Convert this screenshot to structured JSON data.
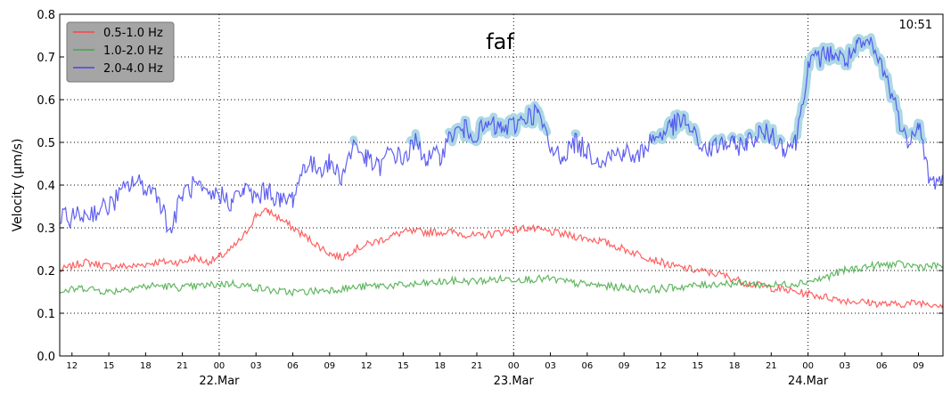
{
  "chart_data": {
    "type": "line",
    "title": "faf",
    "time_stamp": "10:51",
    "ylabel": "Velocity (μm/s)",
    "ylim": [
      0.0,
      0.8
    ],
    "yticks": [
      0.0,
      0.1,
      0.2,
      0.3,
      0.4,
      0.5,
      0.6,
      0.7,
      0.8
    ],
    "ytick_labels": [
      "0.0",
      "0.1",
      "0.2",
      "0.3",
      "0.4",
      "0.5",
      "0.6",
      "0.7",
      "0.8"
    ],
    "x_unit": "hours since 21 Mar 11:00",
    "xlim": [
      0,
      72
    ],
    "hour_ticks": [
      1,
      4,
      7,
      10,
      13,
      16,
      19,
      22,
      25,
      28,
      31,
      34,
      37,
      40,
      43,
      46,
      49,
      52,
      55,
      58,
      61,
      64,
      67,
      70
    ],
    "hour_tick_labels": [
      "12",
      "15",
      "18",
      "21",
      "00",
      "03",
      "06",
      "09",
      "12",
      "15",
      "18",
      "21",
      "00",
      "03",
      "06",
      "09",
      "12",
      "15",
      "18",
      "21",
      "00",
      "03",
      "06",
      "09"
    ],
    "day_ticks": [
      13,
      37,
      61
    ],
    "day_labels": [
      "22.Mar",
      "23.Mar",
      "24.Mar"
    ],
    "grid": true,
    "legend_position": "top-left",
    "threshold": 0.5,
    "threshold_color": "#add8e6",
    "series": [
      {
        "name": "0.5-1.0 Hz",
        "color": "#ff4444",
        "x": [
          0,
          2,
          4,
          6,
          8,
          10,
          11,
          12,
          13,
          14,
          15,
          16,
          17,
          18,
          19,
          20,
          21,
          22,
          23,
          24,
          26,
          28,
          30,
          32,
          34,
          36,
          38,
          40,
          42,
          44,
          46,
          48,
          50,
          52,
          54,
          56,
          58,
          60,
          62,
          64,
          66,
          68,
          70,
          72
        ],
        "y": [
          0.2,
          0.22,
          0.21,
          0.21,
          0.22,
          0.22,
          0.23,
          0.22,
          0.23,
          0.25,
          0.28,
          0.33,
          0.34,
          0.32,
          0.3,
          0.28,
          0.26,
          0.24,
          0.23,
          0.25,
          0.27,
          0.29,
          0.29,
          0.29,
          0.28,
          0.29,
          0.3,
          0.29,
          0.28,
          0.27,
          0.25,
          0.23,
          0.21,
          0.2,
          0.19,
          0.17,
          0.16,
          0.15,
          0.14,
          0.13,
          0.125,
          0.12,
          0.125,
          0.12
        ]
      },
      {
        "name": "1.0-2.0 Hz",
        "color": "#44aa44",
        "x": [
          0,
          2,
          4,
          6,
          8,
          10,
          12,
          14,
          16,
          18,
          20,
          22,
          24,
          26,
          28,
          30,
          32,
          34,
          36,
          38,
          40,
          42,
          44,
          46,
          48,
          50,
          52,
          54,
          56,
          58,
          60,
          62,
          64,
          66,
          68,
          70,
          72
        ],
        "y": [
          0.15,
          0.16,
          0.15,
          0.16,
          0.165,
          0.16,
          0.165,
          0.17,
          0.16,
          0.15,
          0.15,
          0.155,
          0.16,
          0.165,
          0.165,
          0.17,
          0.175,
          0.175,
          0.18,
          0.18,
          0.18,
          0.17,
          0.165,
          0.16,
          0.155,
          0.16,
          0.165,
          0.17,
          0.17,
          0.165,
          0.17,
          0.18,
          0.2,
          0.21,
          0.215,
          0.21,
          0.21
        ]
      },
      {
        "name": "2.0-4.0 Hz",
        "color": "#4444ee",
        "x": [
          0,
          2,
          4,
          6,
          8,
          9,
          10,
          11,
          12,
          13,
          14,
          15,
          16,
          17,
          18,
          19,
          20,
          21,
          22,
          23,
          24,
          25,
          26,
          27,
          28,
          29,
          30,
          31,
          32,
          33,
          34,
          35,
          36,
          37,
          38,
          39,
          40,
          41,
          42,
          43,
          44,
          45,
          46,
          47,
          48,
          49,
          50,
          51,
          52,
          53,
          54,
          55,
          56,
          57,
          58,
          59,
          60,
          61,
          62,
          63,
          64,
          65,
          66,
          67,
          68,
          69,
          70,
          71,
          72
        ],
        "y": [
          0.32,
          0.33,
          0.35,
          0.41,
          0.38,
          0.29,
          0.38,
          0.4,
          0.37,
          0.38,
          0.36,
          0.39,
          0.37,
          0.39,
          0.36,
          0.37,
          0.45,
          0.44,
          0.45,
          0.42,
          0.5,
          0.46,
          0.44,
          0.48,
          0.46,
          0.5,
          0.46,
          0.47,
          0.52,
          0.53,
          0.52,
          0.54,
          0.53,
          0.54,
          0.56,
          0.57,
          0.48,
          0.47,
          0.5,
          0.48,
          0.46,
          0.47,
          0.48,
          0.46,
          0.5,
          0.52,
          0.54,
          0.55,
          0.5,
          0.48,
          0.5,
          0.49,
          0.5,
          0.52,
          0.52,
          0.49,
          0.5,
          0.68,
          0.7,
          0.71,
          0.69,
          0.72,
          0.73,
          0.68,
          0.6,
          0.5,
          0.55,
          0.4,
          0.42
        ]
      }
    ]
  }
}
